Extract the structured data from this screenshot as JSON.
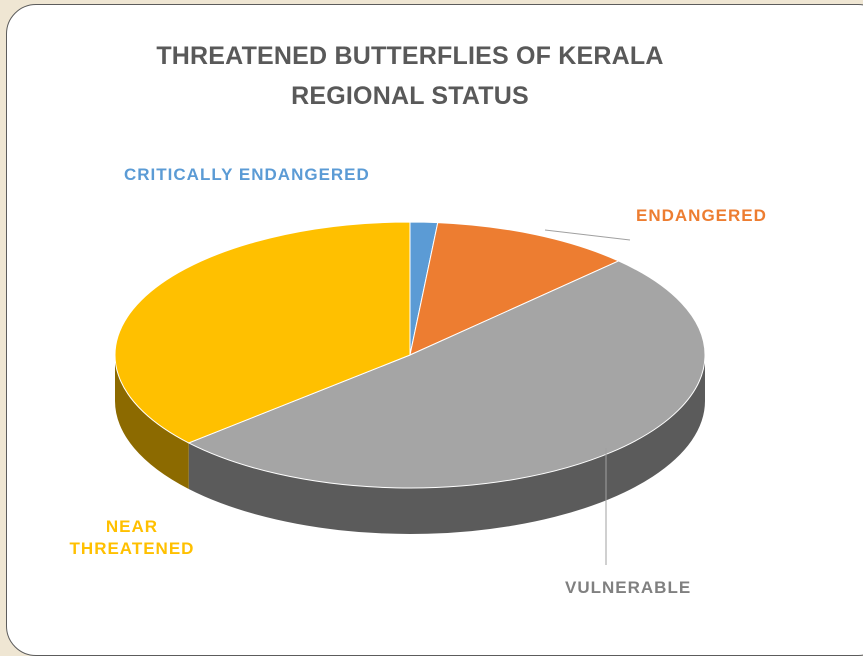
{
  "chart_data": {
    "type": "pie",
    "title": "THREATENED BUTTERFLIES OF KERALA",
    "subtitle": "REGIONAL STATUS",
    "three_d": true,
    "slices": [
      {
        "label": "CRITICALLY ENDANGERED",
        "value": 1.5,
        "color": "#5b9bd5"
      },
      {
        "label": "ENDANGERED",
        "value": 11,
        "color": "#ed7d31"
      },
      {
        "label": "VULNERABLE",
        "value": 51,
        "color": "#a5a5a5"
      },
      {
        "label": "NEAR THREATENED",
        "value": 36.5,
        "color": "#ffc000"
      }
    ]
  }
}
